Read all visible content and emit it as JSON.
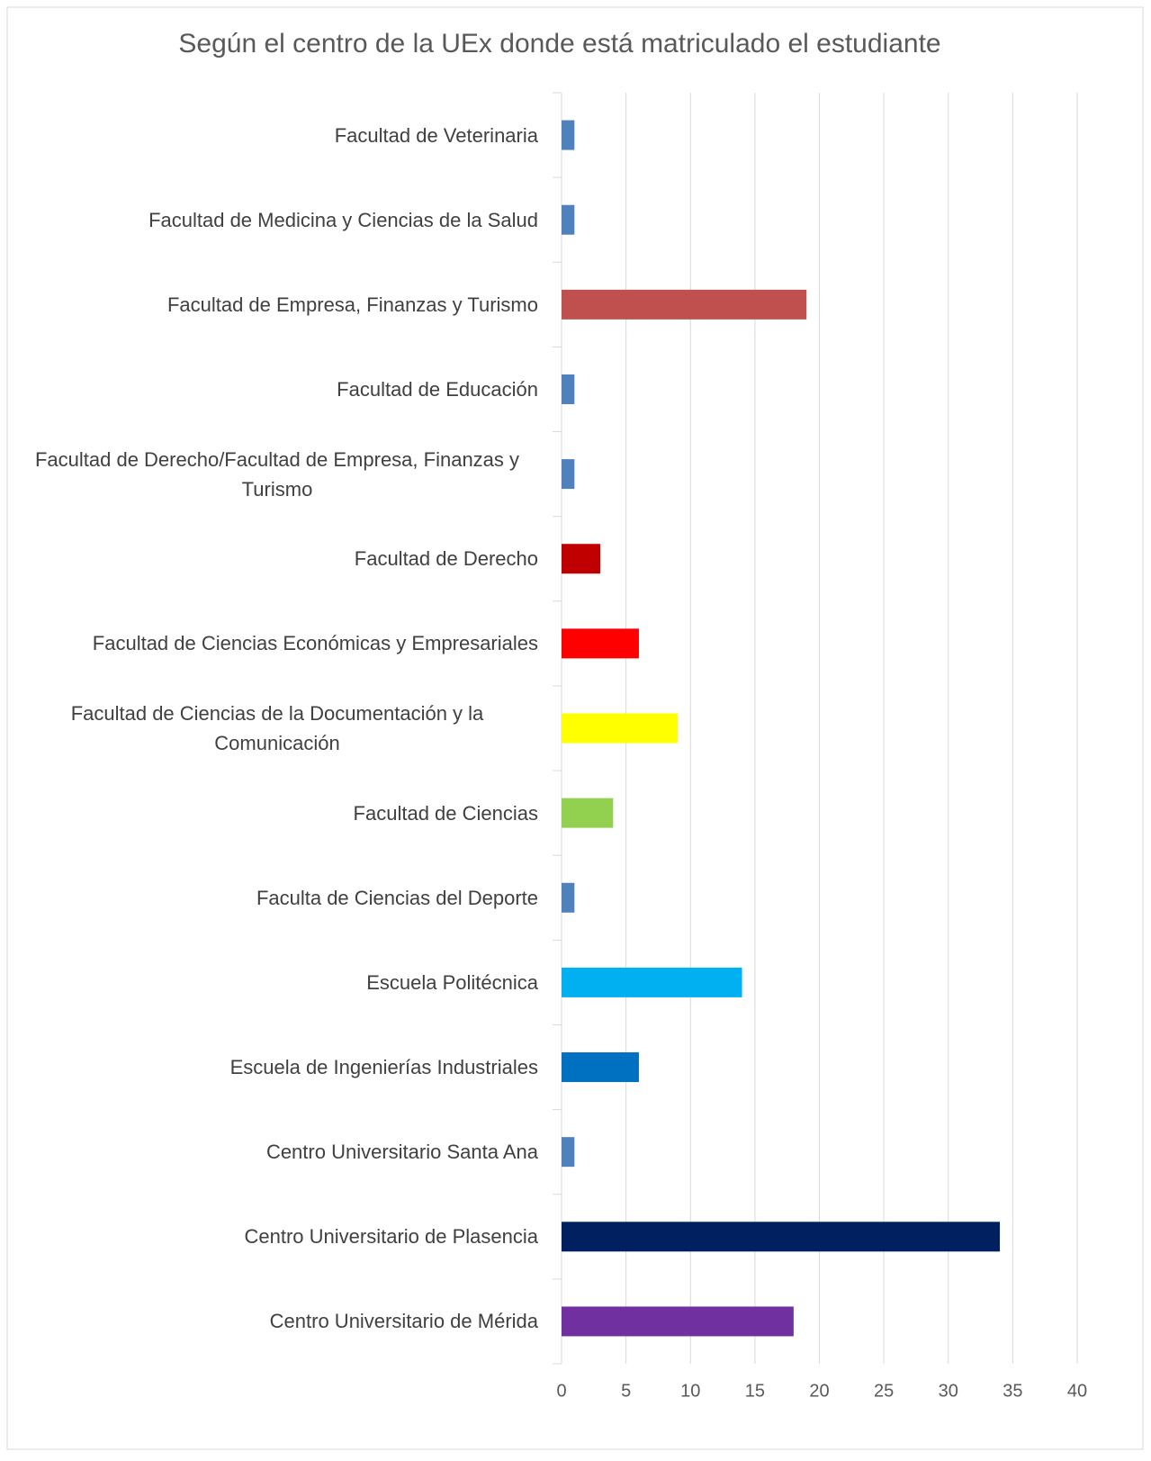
{
  "chart_data": {
    "type": "barh",
    "title": "Según el centro de la UEx donde está matriculado el estudiante",
    "categories": [
      "Facultad de Veterinaria",
      "Facultad de Medicina y Ciencias de la Salud",
      "Facultad de Empresa, Finanzas y Turismo",
      "Facultad de Educación",
      "Facultad de Derecho/Facultad de Empresa, Finanzas y Turismo",
      "Facultad de Derecho",
      "Facultad de Ciencias Económicas y Empresariales",
      "Facultad de Ciencias de la Documentación y la Comunicación",
      "Facultad de Ciencias",
      "Faculta de Ciencias del Deporte",
      "Escuela Politécnica",
      "Escuela de Ingenierías Industriales",
      "Centro Universitario Santa Ana",
      "Centro Universitario de Plasencia",
      "Centro Universitario de Mérida"
    ],
    "values": [
      1,
      1,
      19,
      1,
      1,
      3,
      6,
      9,
      4,
      1,
      14,
      6,
      1,
      34,
      18
    ],
    "colors": [
      "#4f81bd",
      "#4f81bd",
      "#c0504d",
      "#4f81bd",
      "#4f81bd",
      "#c00000",
      "#ff0000",
      "#ffff00",
      "#92d050",
      "#4f81bd",
      "#00b0f0",
      "#0070c0",
      "#4f81bd",
      "#002060",
      "#7030a0"
    ],
    "xlim": [
      0,
      40
    ],
    "xticks": [
      0,
      5,
      10,
      15,
      20,
      25,
      30,
      35,
      40
    ],
    "grid": true
  }
}
